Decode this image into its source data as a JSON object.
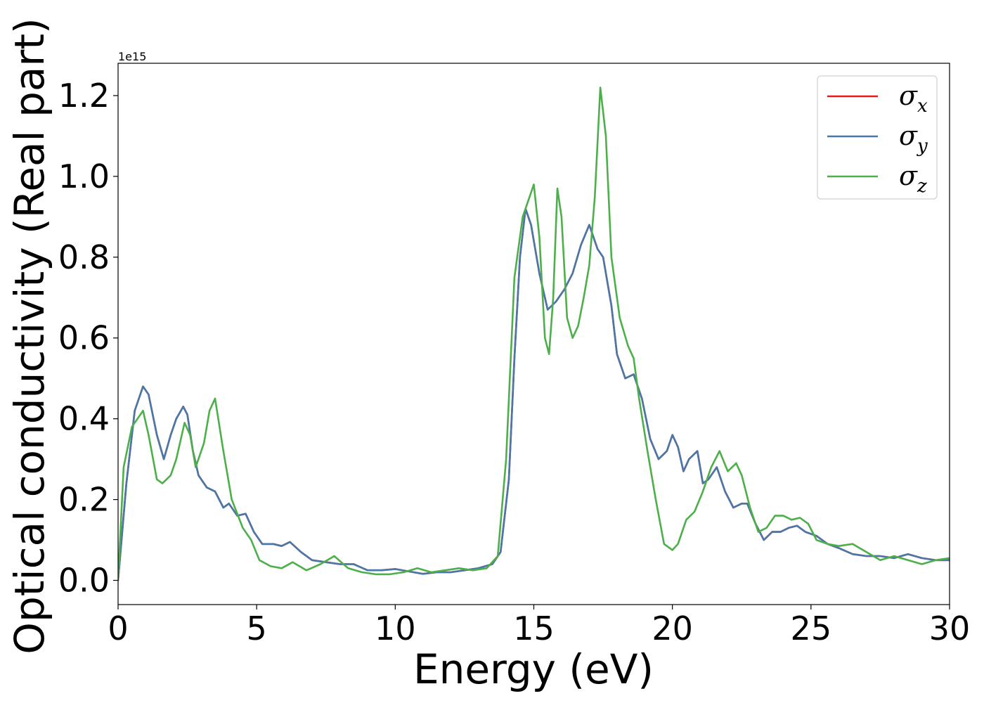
{
  "chart_data": {
    "type": "line",
    "title": "",
    "xlabel": "Energy (eV)",
    "ylabel": "Optical conductivity (Real part)",
    "y_offset_label": "1e15",
    "xlim": [
      0,
      30
    ],
    "ylim": [
      -0.06,
      1.28
    ],
    "x_ticks": [
      0,
      5,
      10,
      15,
      20,
      25,
      30
    ],
    "x_tick_labels": [
      "0",
      "5",
      "10",
      "15",
      "20",
      "25",
      "30"
    ],
    "y_ticks": [
      0.0,
      0.2,
      0.4,
      0.6,
      0.8,
      1.0,
      1.2
    ],
    "y_tick_labels": [
      "0.0",
      "0.2",
      "0.4",
      "0.6",
      "0.8",
      "1.0",
      "1.2"
    ],
    "grid": false,
    "legend_position": "top-right",
    "series": [
      {
        "name": "σx",
        "symbol": "σ",
        "subscript": "x",
        "color": "#e41a1c",
        "x": [
          0,
          0.3,
          0.6,
          0.9,
          1.1,
          1.4,
          1.65,
          1.9,
          2.1,
          2.35,
          2.5,
          2.7,
          2.9,
          3.2,
          3.5,
          3.8,
          4.0,
          4.3,
          4.6,
          4.9,
          5.2,
          5.6,
          5.9,
          6.2,
          6.6,
          7.0,
          7.5,
          8.0,
          8.5,
          9.0,
          9.5,
          10.0,
          10.5,
          11.0,
          11.5,
          12.0,
          12.5,
          13.0,
          13.5,
          13.8,
          14.1,
          14.3,
          14.5,
          14.7,
          14.9,
          15.2,
          15.5,
          15.8,
          16.1,
          16.4,
          16.7,
          17.0,
          17.3,
          17.5,
          17.8,
          18.0,
          18.3,
          18.6,
          18.9,
          19.2,
          19.5,
          19.8,
          20.0,
          20.2,
          20.4,
          20.6,
          20.9,
          21.1,
          21.3,
          21.6,
          21.9,
          22.2,
          22.5,
          22.7,
          23.0,
          23.3,
          23.6,
          23.9,
          24.2,
          24.5,
          24.8,
          25.2,
          25.6,
          26.0,
          26.5,
          27.0,
          27.5,
          28.0,
          28.5,
          29.0,
          29.5,
          30.0
        ],
        "y": [
          0.0,
          0.24,
          0.42,
          0.48,
          0.46,
          0.36,
          0.3,
          0.36,
          0.4,
          0.43,
          0.41,
          0.32,
          0.26,
          0.23,
          0.22,
          0.18,
          0.19,
          0.16,
          0.165,
          0.12,
          0.09,
          0.09,
          0.085,
          0.095,
          0.07,
          0.05,
          0.045,
          0.04,
          0.04,
          0.025,
          0.025,
          0.028,
          0.022,
          0.016,
          0.02,
          0.02,
          0.025,
          0.03,
          0.04,
          0.07,
          0.25,
          0.55,
          0.8,
          0.92,
          0.88,
          0.76,
          0.67,
          0.69,
          0.72,
          0.76,
          0.83,
          0.88,
          0.82,
          0.8,
          0.68,
          0.56,
          0.5,
          0.51,
          0.45,
          0.35,
          0.3,
          0.32,
          0.36,
          0.33,
          0.27,
          0.3,
          0.32,
          0.24,
          0.25,
          0.28,
          0.22,
          0.18,
          0.19,
          0.19,
          0.14,
          0.1,
          0.12,
          0.12,
          0.13,
          0.135,
          0.12,
          0.11,
          0.09,
          0.08,
          0.065,
          0.06,
          0.06,
          0.055,
          0.065,
          0.055,
          0.05,
          0.05
        ]
      },
      {
        "name": "σy",
        "symbol": "σ",
        "subscript": "y",
        "color": "#4878aa",
        "x": [
          0,
          0.3,
          0.6,
          0.9,
          1.1,
          1.4,
          1.65,
          1.9,
          2.1,
          2.35,
          2.5,
          2.7,
          2.9,
          3.2,
          3.5,
          3.8,
          4.0,
          4.3,
          4.6,
          4.9,
          5.2,
          5.6,
          5.9,
          6.2,
          6.6,
          7.0,
          7.5,
          8.0,
          8.5,
          9.0,
          9.5,
          10.0,
          10.5,
          11.0,
          11.5,
          12.0,
          12.5,
          13.0,
          13.5,
          13.8,
          14.1,
          14.3,
          14.5,
          14.7,
          14.9,
          15.2,
          15.5,
          15.8,
          16.1,
          16.4,
          16.7,
          17.0,
          17.3,
          17.5,
          17.8,
          18.0,
          18.3,
          18.6,
          18.9,
          19.2,
          19.5,
          19.8,
          20.0,
          20.2,
          20.4,
          20.6,
          20.9,
          21.1,
          21.3,
          21.6,
          21.9,
          22.2,
          22.5,
          22.7,
          23.0,
          23.3,
          23.6,
          23.9,
          24.2,
          24.5,
          24.8,
          25.2,
          25.6,
          26.0,
          26.5,
          27.0,
          27.5,
          28.0,
          28.5,
          29.0,
          29.5,
          30.0
        ],
        "y": [
          0.0,
          0.24,
          0.42,
          0.48,
          0.46,
          0.36,
          0.3,
          0.36,
          0.4,
          0.43,
          0.41,
          0.32,
          0.26,
          0.23,
          0.22,
          0.18,
          0.19,
          0.16,
          0.165,
          0.12,
          0.09,
          0.09,
          0.085,
          0.095,
          0.07,
          0.05,
          0.045,
          0.04,
          0.04,
          0.025,
          0.025,
          0.028,
          0.022,
          0.016,
          0.02,
          0.02,
          0.025,
          0.03,
          0.04,
          0.07,
          0.25,
          0.55,
          0.8,
          0.92,
          0.88,
          0.76,
          0.67,
          0.69,
          0.72,
          0.76,
          0.83,
          0.88,
          0.82,
          0.8,
          0.68,
          0.56,
          0.5,
          0.51,
          0.45,
          0.35,
          0.3,
          0.32,
          0.36,
          0.33,
          0.27,
          0.3,
          0.32,
          0.24,
          0.25,
          0.28,
          0.22,
          0.18,
          0.19,
          0.19,
          0.14,
          0.1,
          0.12,
          0.12,
          0.13,
          0.135,
          0.12,
          0.11,
          0.09,
          0.08,
          0.065,
          0.06,
          0.06,
          0.055,
          0.065,
          0.055,
          0.05,
          0.05
        ]
      },
      {
        "name": "σz",
        "symbol": "σ",
        "subscript": "z",
        "color": "#4daf4a",
        "x": [
          0,
          0.2,
          0.5,
          0.9,
          1.1,
          1.4,
          1.6,
          1.9,
          2.1,
          2.4,
          2.6,
          2.8,
          3.1,
          3.3,
          3.5,
          3.8,
          4.1,
          4.5,
          4.8,
          5.1,
          5.5,
          5.9,
          6.3,
          6.8,
          7.3,
          7.8,
          8.3,
          8.8,
          9.3,
          9.8,
          10.3,
          10.8,
          11.3,
          11.8,
          12.3,
          12.8,
          13.3,
          13.7,
          14.0,
          14.3,
          14.6,
          14.8,
          15.0,
          15.2,
          15.4,
          15.55,
          15.7,
          15.85,
          16.0,
          16.2,
          16.4,
          16.6,
          16.8,
          17.0,
          17.2,
          17.4,
          17.6,
          17.8,
          18.1,
          18.4,
          18.6,
          18.8,
          19.1,
          19.4,
          19.7,
          20.0,
          20.2,
          20.5,
          20.8,
          21.1,
          21.4,
          21.7,
          22.0,
          22.3,
          22.5,
          22.8,
          23.1,
          23.4,
          23.7,
          24.0,
          24.3,
          24.6,
          24.9,
          25.2,
          25.6,
          26.0,
          26.5,
          27.0,
          27.5,
          28.0,
          28.5,
          29.0,
          29.5,
          30.0
        ],
        "y": [
          0.0,
          0.28,
          0.38,
          0.42,
          0.36,
          0.25,
          0.24,
          0.26,
          0.3,
          0.39,
          0.36,
          0.28,
          0.34,
          0.42,
          0.45,
          0.32,
          0.2,
          0.13,
          0.1,
          0.05,
          0.035,
          0.03,
          0.045,
          0.025,
          0.04,
          0.06,
          0.03,
          0.02,
          0.015,
          0.015,
          0.02,
          0.03,
          0.02,
          0.025,
          0.03,
          0.025,
          0.03,
          0.06,
          0.3,
          0.75,
          0.9,
          0.94,
          0.98,
          0.85,
          0.6,
          0.56,
          0.7,
          0.97,
          0.9,
          0.65,
          0.6,
          0.63,
          0.7,
          0.78,
          0.95,
          1.22,
          1.1,
          0.8,
          0.65,
          0.58,
          0.55,
          0.45,
          0.32,
          0.2,
          0.09,
          0.075,
          0.09,
          0.15,
          0.17,
          0.22,
          0.28,
          0.32,
          0.27,
          0.29,
          0.26,
          0.18,
          0.12,
          0.13,
          0.16,
          0.16,
          0.15,
          0.155,
          0.14,
          0.1,
          0.09,
          0.085,
          0.09,
          0.07,
          0.05,
          0.06,
          0.05,
          0.04,
          0.05,
          0.055
        ]
      }
    ]
  }
}
